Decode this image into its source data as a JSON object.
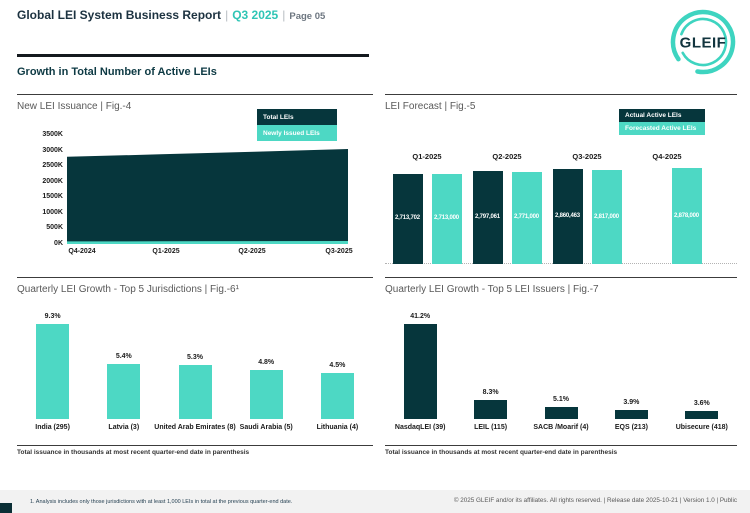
{
  "header": {
    "title": "Global LEI System Business Report",
    "separator": "|",
    "quarter": "Q3 2025",
    "page": "Page 05",
    "logo_text": "GLEIF"
  },
  "section_title": "Growth in Total Number of Active LEIs",
  "colors": {
    "dark_teal": "#06363C",
    "accent_teal": "#4DD8C4",
    "logo_teal": "#3ED4C0",
    "header_navy": "#1C3240",
    "quarter_teal": "#2FC5B5",
    "chart_title_gray": "#595959",
    "footer_bg": "#F2F2F2"
  },
  "chart_data": [
    {
      "id": "fig4",
      "type": "area",
      "title": "New LEI Issuance | Fig.-4",
      "legend": [
        "Total LEIs",
        "Newly Issued LEIs"
      ],
      "legend_colors": [
        "#06363C",
        "#4DD8C4"
      ],
      "legend_position": "top-right",
      "x": [
        "Q4-2024",
        "Q1-2025",
        "Q2-2025",
        "Q3-2025"
      ],
      "series": [
        {
          "name": "Total LEIs",
          "color": "#06363C",
          "values": [
            2800000,
            2880000,
            2960000,
            3050000
          ]
        },
        {
          "name": "Newly Issued LEIs",
          "color": "#4DD8C4",
          "values": [
            85000,
            88000,
            92000,
            95000
          ]
        }
      ],
      "ylim": [
        0,
        3500000
      ],
      "yticks": [
        "3500K",
        "3000K",
        "2500K",
        "2000K",
        "1500K",
        "1000K",
        "500K",
        "0K"
      ],
      "grid": false
    },
    {
      "id": "fig5",
      "type": "bar",
      "title": "LEI Forecast | Fig.-5",
      "legend": [
        "Actual Active LEIs",
        "Forecasted Active LEIs"
      ],
      "legend_colors": [
        "#06363C",
        "#4DD8C4"
      ],
      "legend_position": "top-right",
      "categories": [
        "Q1-2025",
        "Q2-2025",
        "Q3-2025",
        "Q4-2025"
      ],
      "series": [
        {
          "name": "Actual Active LEIs",
          "color": "#06363C",
          "values": [
            2713702,
            2797061,
            2860463,
            null
          ],
          "display": [
            "2,713,702",
            "2,797,061",
            "2,860,463",
            null
          ]
        },
        {
          "name": "Forecasted Active LEIs",
          "color": "#4DD8C4",
          "values": [
            2713000,
            2771000,
            2817000,
            2878000
          ],
          "display": [
            "2,713,000",
            "2,771,000",
            "2,817,000",
            "2,878,000"
          ]
        }
      ],
      "grid": false
    },
    {
      "id": "fig6",
      "type": "bar",
      "title": "Quarterly LEI Growth - Top 5 Jurisdictions | Fig.-6¹",
      "bar_color": "#4DD8C4",
      "categories": [
        "India (295)",
        "Latvia (3)",
        "United Arab Emirates (8)",
        "Saudi Arabia (5)",
        "Lithuania (4)"
      ],
      "values": [
        9.3,
        5.4,
        5.3,
        4.8,
        4.5
      ],
      "value_labels": [
        "9.3%",
        "5.4%",
        "5.3%",
        "4.8%",
        "4.5%"
      ],
      "footnote": "Total issuance in thousands at most recent quarter-end date in parenthesis",
      "grid": false
    },
    {
      "id": "fig7",
      "type": "bar",
      "title": "Quarterly LEI Growth - Top 5 LEI Issuers | Fig.-7",
      "bar_color": "#06363C",
      "categories": [
        "NasdaqLEI (39)",
        "LEIL (115)",
        "SACB /Moarif (4)",
        "EQS (213)",
        "Ubisecure (418)"
      ],
      "values": [
        41.2,
        8.3,
        5.1,
        3.9,
        3.6
      ],
      "value_labels": [
        "41.2%",
        "8.3%",
        "5.1%",
        "3.9%",
        "3.6%"
      ],
      "footnote": "Total issuance in thousands at most recent quarter-end date in parenthesis",
      "grid": false
    }
  ],
  "footnotes": {
    "analysis": "1. Analysis includes only those jurisdictions with at least 1,000 LEIs in total at the previous quarter-end date."
  },
  "footer": {
    "copyright": "© 2025 GLEIF and/or its affiliates. All rights reserved. | Release date 2025-10-21 | Version 1.0 | Public"
  }
}
